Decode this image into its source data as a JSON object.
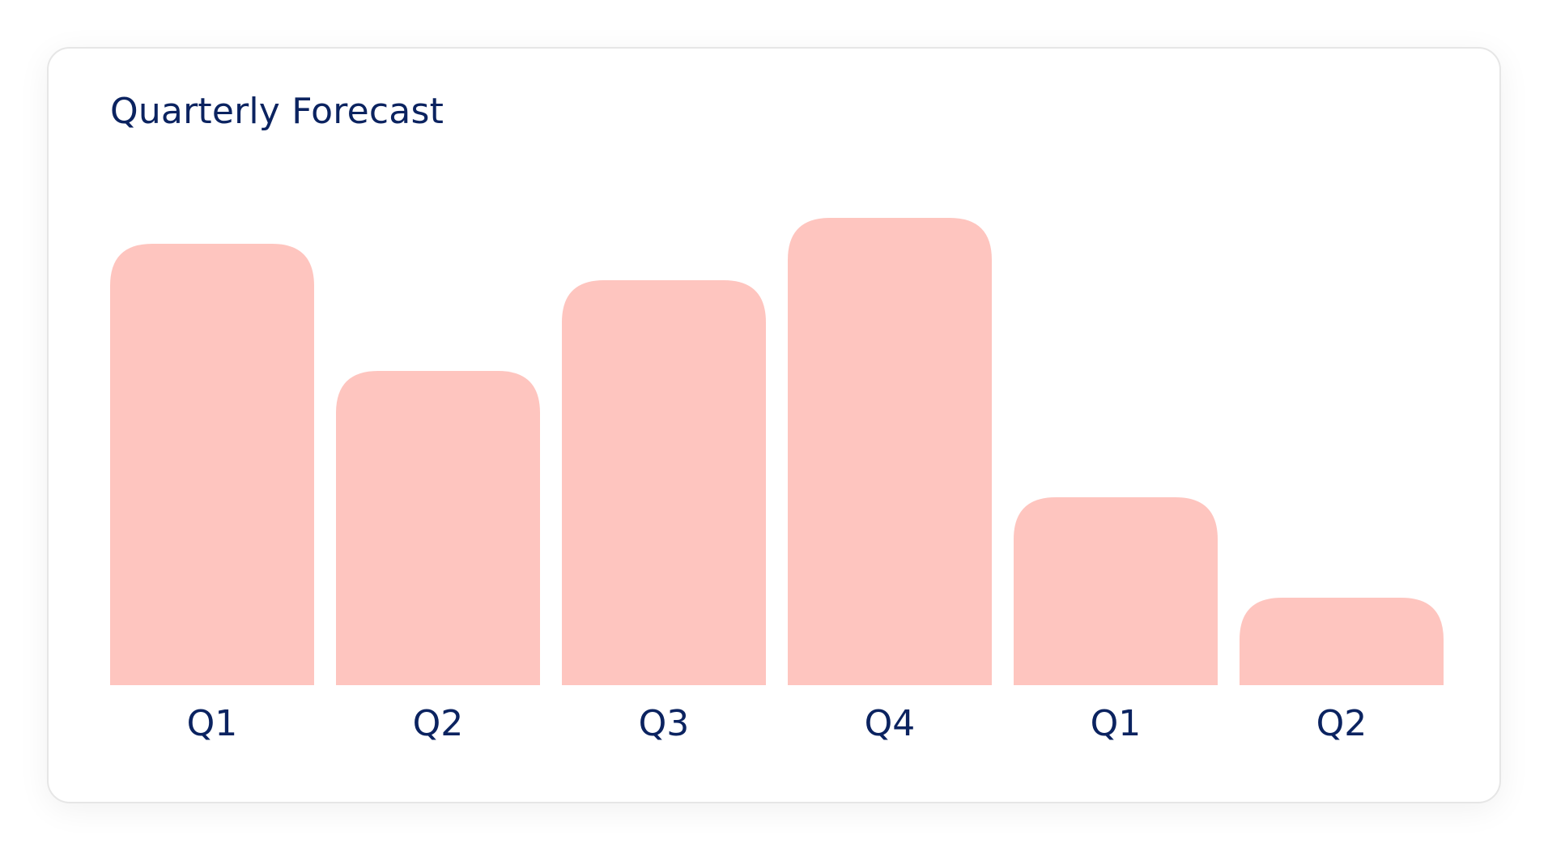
{
  "chart_data": {
    "type": "bar",
    "title": "Quarterly Forecast",
    "categories": [
      "Q1",
      "Q2",
      "Q3",
      "Q4",
      "Q1",
      "Q2"
    ],
    "values": [
      545,
      388,
      500,
      577,
      232,
      108
    ],
    "ylim": [
      0,
      600
    ],
    "grid": false,
    "legend": "none",
    "bar_color": "#fec5bf",
    "text_color": "#0b2360"
  }
}
